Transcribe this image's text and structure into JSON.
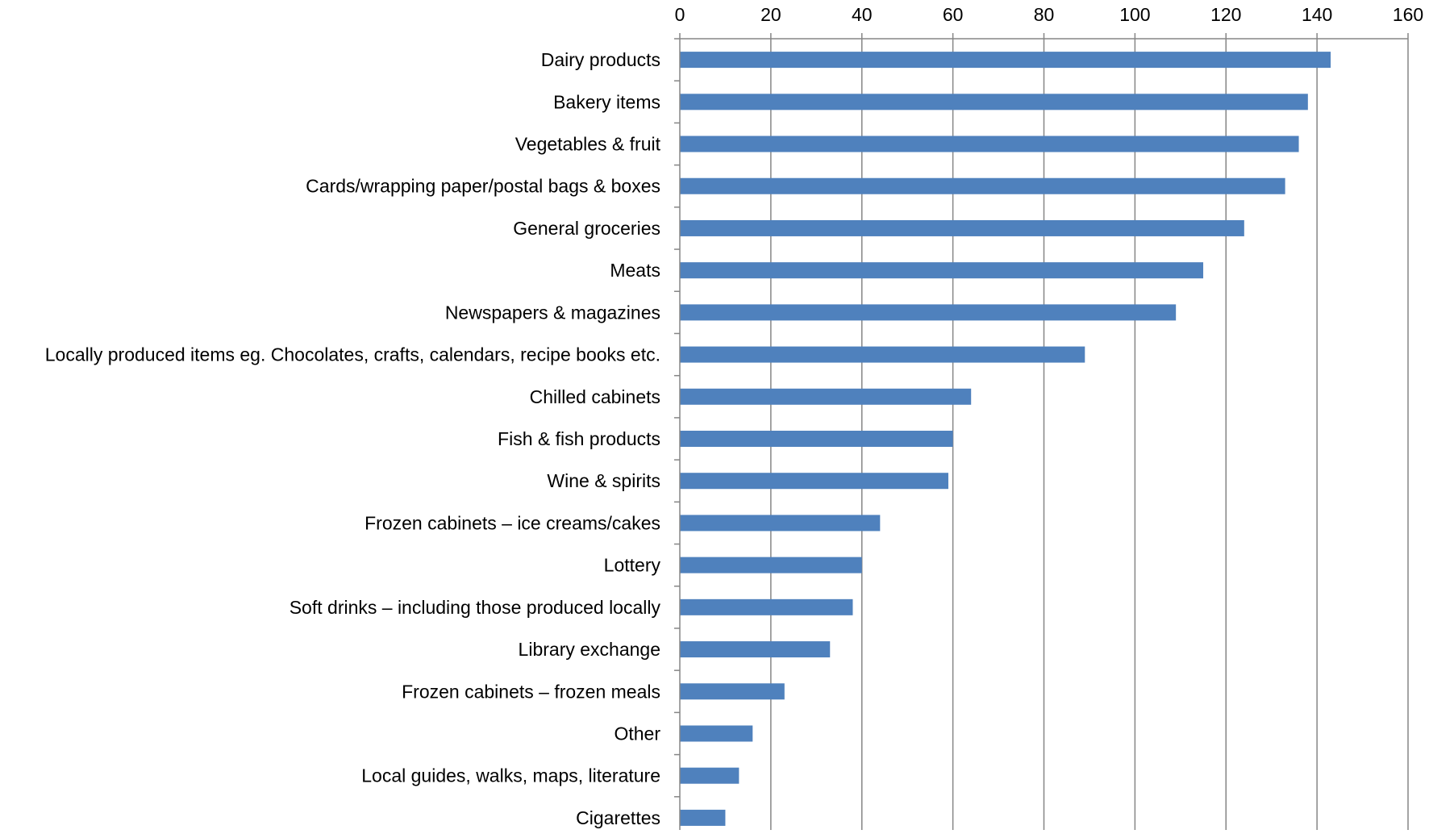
{
  "chart_data": {
    "type": "bar",
    "orientation": "horizontal",
    "categories": [
      "Dairy products",
      "Bakery items",
      "Vegetables & fruit",
      "Cards/wrapping paper/postal bags & boxes",
      "General groceries",
      "Meats",
      "Newspapers & magazines",
      "Locally produced items eg. Chocolates, crafts, calendars, recipe books etc.",
      "Chilled cabinets",
      "Fish & fish products",
      "Wine & spirits",
      "Frozen cabinets – ice creams/cakes",
      "Lottery",
      "Soft drinks – including those produced locally",
      "Library exchange",
      "Frozen cabinets – frozen meals",
      "Other",
      "Local guides, walks, maps, literature",
      "Cigarettes"
    ],
    "values": [
      143,
      138,
      136,
      133,
      124,
      115,
      109,
      89,
      64,
      60,
      59,
      44,
      40,
      38,
      33,
      23,
      16,
      13,
      10
    ],
    "xlim": [
      0,
      160
    ],
    "x_ticks": [
      "0",
      "20",
      "40",
      "60",
      "80",
      "100",
      "120",
      "140",
      "160"
    ],
    "x_axis_position": "top",
    "grid": true,
    "legend": "none",
    "title": "",
    "xlabel": "",
    "ylabel": "",
    "colors": {
      "bar": "#4F81BD",
      "grid": "#868686",
      "axis": "#868686",
      "text": "#000000"
    }
  }
}
